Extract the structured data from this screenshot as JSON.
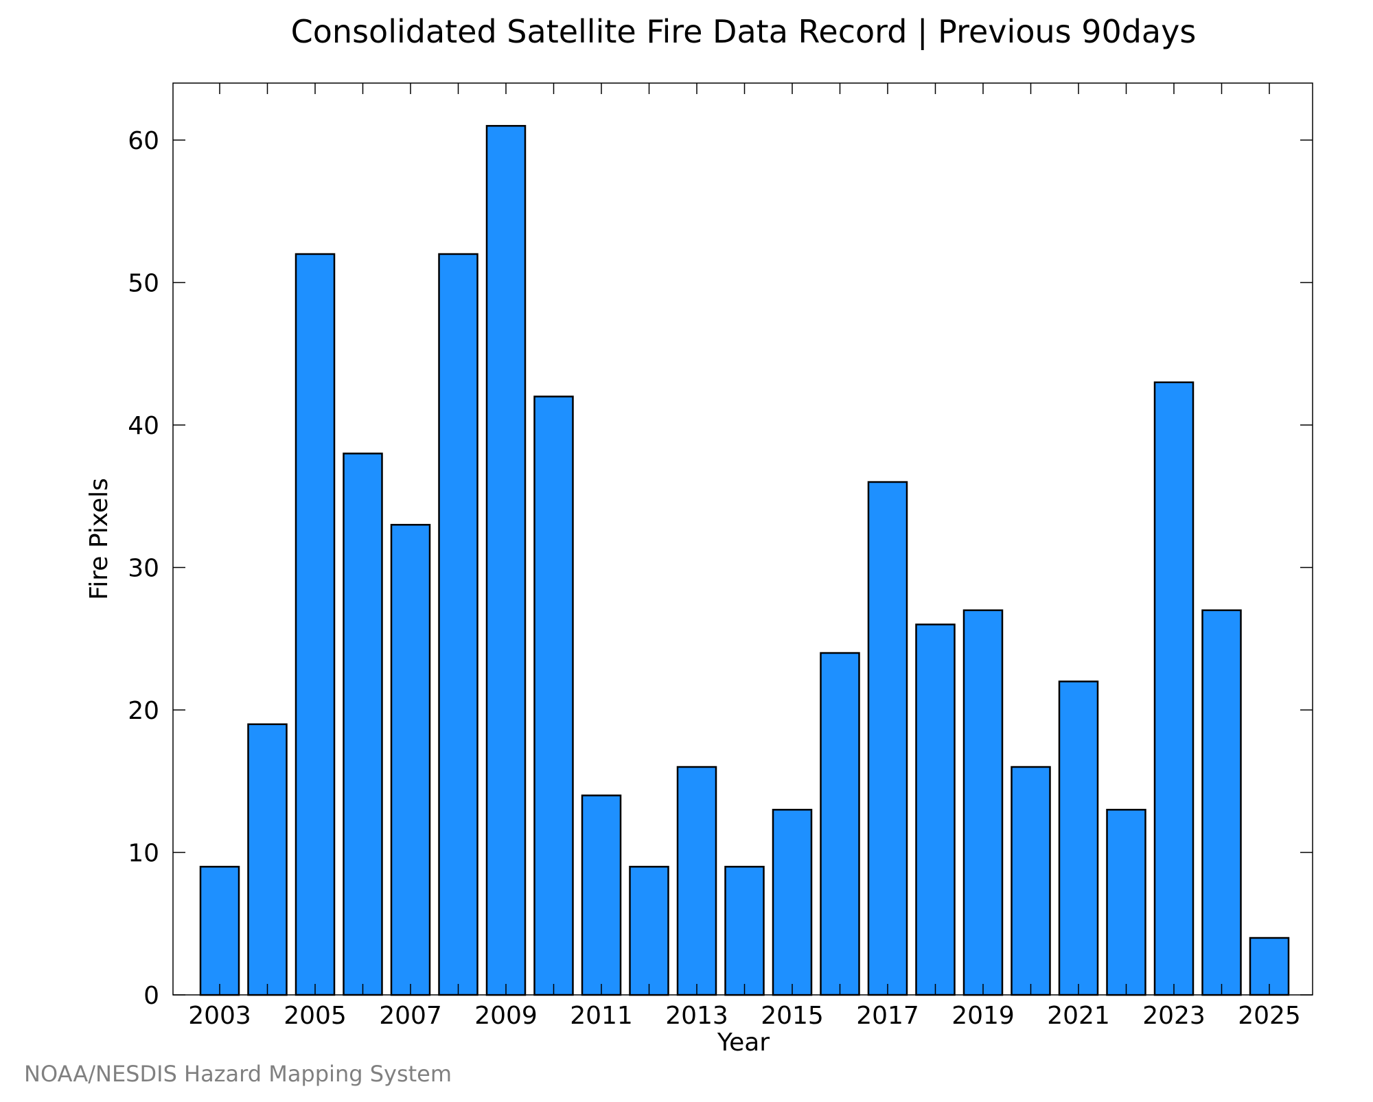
{
  "chart_data": {
    "type": "bar",
    "title": "Consolidated Satellite Fire Data Record | Previous 90days",
    "xlabel": "Year",
    "ylabel": "Fire Pixels",
    "categories": [
      2003,
      2004,
      2005,
      2006,
      2007,
      2008,
      2009,
      2010,
      2011,
      2012,
      2013,
      2014,
      2015,
      2016,
      2017,
      2018,
      2019,
      2020,
      2021,
      2022,
      2023,
      2024,
      2025
    ],
    "values": [
      9,
      19,
      52,
      38,
      33,
      52,
      61,
      42,
      14,
      9,
      16,
      9,
      13,
      24,
      36,
      26,
      27,
      16,
      22,
      13,
      43,
      27,
      4
    ],
    "xticks": [
      "2003",
      "2005",
      "2007",
      "2009",
      "2011",
      "2013",
      "2015",
      "2017",
      "2019",
      "2021",
      "2023",
      "2025"
    ],
    "yticks": [
      "0",
      "10",
      "20",
      "30",
      "40",
      "50",
      "60"
    ],
    "ylim": [
      0,
      64
    ],
    "bar_color": "#1e90ff",
    "grid": false,
    "credit": "NOAA/NESDIS Hazard Mapping System"
  }
}
